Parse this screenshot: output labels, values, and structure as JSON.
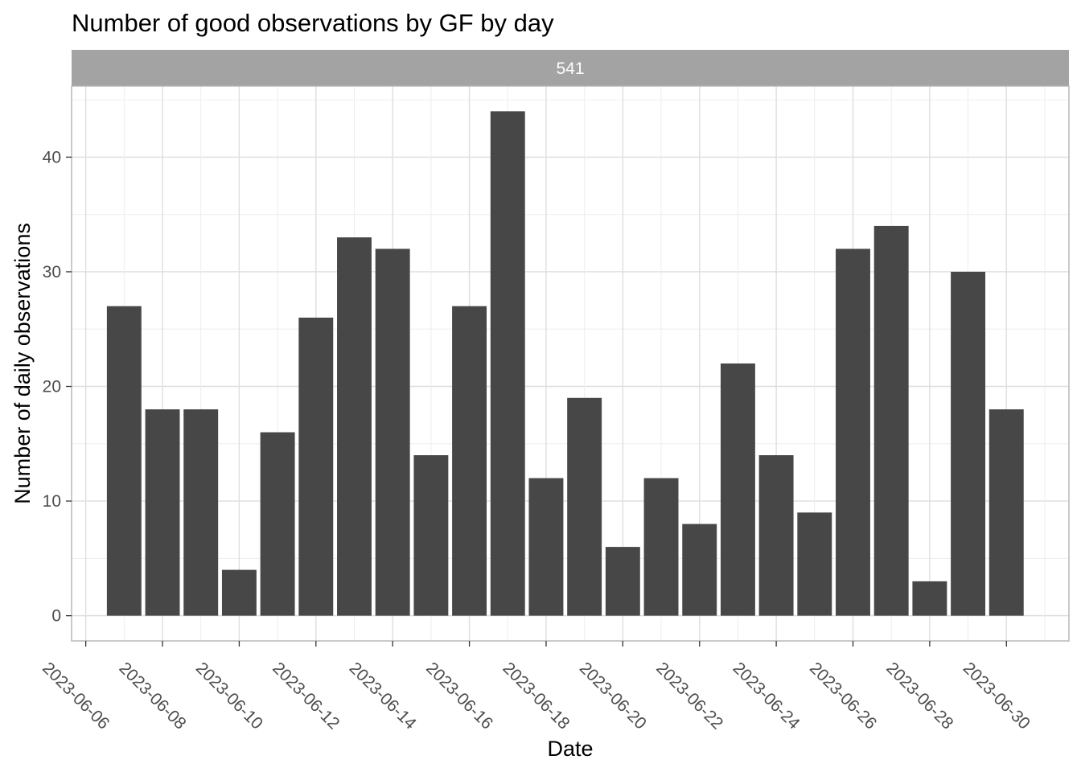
{
  "chart_data": {
    "type": "bar",
    "title": "Number of good observations by GF by day",
    "facet_label": "541",
    "xlabel": "Date",
    "ylabel": "Number of daily observations",
    "x": [
      "2023-06-07",
      "2023-06-08",
      "2023-06-09",
      "2023-06-10",
      "2023-06-11",
      "2023-06-12",
      "2023-06-13",
      "2023-06-14",
      "2023-06-15",
      "2023-06-16",
      "2023-06-17",
      "2023-06-18",
      "2023-06-19",
      "2023-06-20",
      "2023-06-21",
      "2023-06-22",
      "2023-06-23",
      "2023-06-24",
      "2023-06-25",
      "2023-06-26",
      "2023-06-27",
      "2023-06-28",
      "2023-06-29",
      "2023-06-30"
    ],
    "values": [
      27,
      18,
      18,
      4,
      16,
      26,
      33,
      32,
      14,
      27,
      44,
      12,
      19,
      6,
      12,
      8,
      22,
      14,
      9,
      32,
      34,
      3,
      30,
      18
    ],
    "x_ticks": [
      "2023-06-06",
      "2023-06-08",
      "2023-06-10",
      "2023-06-12",
      "2023-06-14",
      "2023-06-16",
      "2023-06-18",
      "2023-06-20",
      "2023-06-22",
      "2023-06-24",
      "2023-06-26",
      "2023-06-28",
      "2023-06-30"
    ],
    "y_ticks": [
      0,
      10,
      20,
      30,
      40
    ],
    "ylim": [
      -2.2,
      46.2
    ],
    "xlim": [
      "2023-06-05.63",
      "2023-07-01.63"
    ],
    "grid": true,
    "colors": {
      "bar": "#474747",
      "strip": "#a3a3a3",
      "panel_border": "#b3b3b3",
      "background": "#ffffff"
    }
  }
}
